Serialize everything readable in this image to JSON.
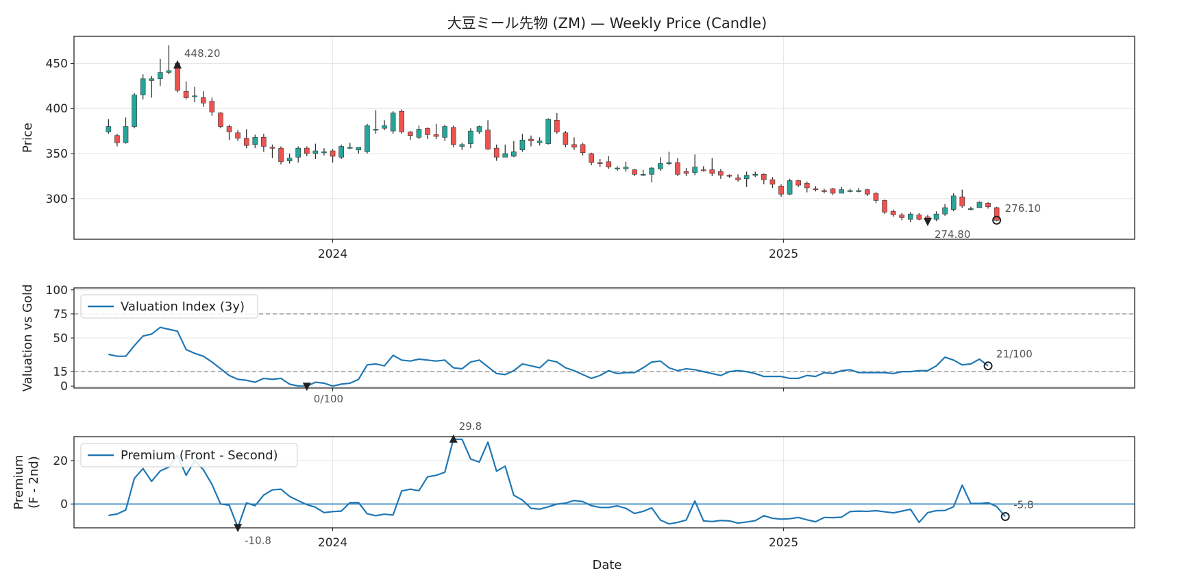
{
  "chart_data": [
    {
      "panel": "price",
      "type": "candlestick",
      "title": "大豆ミール先物 (ZM) — Weekly Price (Candle)",
      "ylabel": "Price",
      "ylim": [
        255,
        480
      ],
      "yticks": [
        300,
        350,
        400,
        450
      ],
      "xticks": [
        {
          "label": "2024",
          "date": "2024-01-01"
        },
        {
          "label": "2025",
          "date": "2025-01-01"
        }
      ],
      "xlim": [
        "2023-06-05",
        "2025-10-13"
      ],
      "grid": true,
      "start_date": "2023-07-03",
      "ohlc": [
        [
          374,
          380,
          388,
          372
        ],
        [
          370,
          362,
          372,
          358
        ],
        [
          362,
          380,
          390,
          361
        ],
        [
          380,
          415,
          417,
          378
        ],
        [
          415,
          433,
          438,
          410
        ],
        [
          431,
          433,
          436,
          412
        ],
        [
          433,
          440,
          455,
          425
        ],
        [
          440,
          442,
          470,
          438
        ],
        [
          450,
          420,
          453,
          418
        ],
        [
          419,
          412,
          430,
          410
        ],
        [
          414,
          414,
          424,
          407
        ],
        [
          412,
          406,
          419,
          402
        ],
        [
          408,
          396,
          412,
          392
        ],
        [
          395,
          380,
          396,
          378
        ],
        [
          380,
          374,
          382,
          365
        ],
        [
          373,
          367,
          376,
          364
        ],
        [
          367,
          359,
          377,
          356
        ],
        [
          360,
          368,
          371,
          356
        ],
        [
          368,
          358,
          372,
          352
        ],
        [
          357,
          356,
          360,
          345
        ],
        [
          356,
          341,
          358,
          338
        ],
        [
          342,
          345,
          350,
          339
        ],
        [
          346,
          356,
          358,
          340
        ],
        [
          356,
          350,
          358,
          347
        ],
        [
          350,
          353,
          361,
          344
        ],
        [
          352,
          352,
          356,
          348
        ],
        [
          353,
          347,
          355,
          340
        ],
        [
          346,
          358,
          360,
          344
        ],
        [
          357,
          357,
          362,
          355
        ],
        [
          354,
          357,
          357,
          350
        ],
        [
          352,
          381,
          383,
          350
        ],
        [
          377,
          377,
          398,
          372
        ],
        [
          378,
          381,
          387,
          376
        ],
        [
          375,
          395,
          397,
          372
        ],
        [
          397,
          374,
          399,
          372
        ],
        [
          374,
          370,
          375,
          365
        ],
        [
          368,
          377,
          381,
          366
        ],
        [
          378,
          371,
          379,
          366
        ],
        [
          371,
          369,
          383,
          366
        ],
        [
          368,
          380,
          382,
          364
        ],
        [
          379,
          360,
          381,
          357
        ],
        [
          358,
          360,
          362,
          354
        ],
        [
          361,
          375,
          378,
          356
        ],
        [
          374,
          380,
          381,
          372
        ],
        [
          376,
          355,
          387,
          354
        ],
        [
          356,
          346,
          360,
          342
        ],
        [
          346,
          350,
          360,
          347
        ],
        [
          347,
          352,
          364,
          346
        ],
        [
          354,
          365,
          372,
          352
        ],
        [
          366,
          364,
          370,
          358
        ],
        [
          362,
          364,
          368,
          359
        ],
        [
          361,
          388,
          389,
          360
        ],
        [
          387,
          374,
          395,
          372
        ],
        [
          373,
          360,
          375,
          357
        ],
        [
          360,
          357,
          368,
          354
        ],
        [
          360,
          351,
          362,
          348
        ],
        [
          350,
          340,
          351,
          337
        ],
        [
          340,
          339,
          344,
          335
        ],
        [
          341,
          335,
          347,
          333
        ],
        [
          334,
          334,
          336,
          331
        ],
        [
          333,
          335,
          341,
          330
        ],
        [
          332,
          327,
          333,
          325
        ],
        [
          327,
          327,
          332,
          325
        ],
        [
          327,
          334,
          335,
          318
        ],
        [
          333,
          339,
          346,
          331
        ],
        [
          340,
          340,
          352,
          337
        ],
        [
          340,
          327,
          345,
          325
        ],
        [
          330,
          328,
          334,
          325
        ],
        [
          329,
          335,
          349,
          326
        ],
        [
          332,
          331,
          336,
          330
        ],
        [
          332,
          328,
          345,
          325
        ],
        [
          330,
          326,
          333,
          322
        ],
        [
          326,
          325,
          327,
          323
        ],
        [
          323,
          321,
          327,
          319
        ],
        [
          322,
          326,
          330,
          313
        ],
        [
          326,
          327,
          330,
          324
        ],
        [
          327,
          321,
          328,
          316
        ],
        [
          321,
          316,
          324,
          312
        ],
        [
          314,
          305,
          316,
          302
        ],
        [
          305,
          320,
          322,
          304
        ],
        [
          320,
          315,
          321,
          313
        ],
        [
          317,
          312,
          319,
          307
        ],
        [
          311,
          310,
          314,
          308
        ],
        [
          309,
          308,
          311,
          306
        ],
        [
          311,
          306,
          312,
          304
        ],
        [
          306,
          310,
          313,
          306
        ],
        [
          309,
          309,
          311,
          307
        ],
        [
          309,
          309,
          312,
          307
        ],
        [
          310,
          305,
          311,
          303
        ],
        [
          306,
          298,
          307,
          295
        ],
        [
          298,
          285,
          299,
          283
        ],
        [
          286,
          282,
          288,
          280
        ],
        [
          282,
          279,
          284,
          276
        ],
        [
          277,
          283,
          285,
          274
        ],
        [
          282,
          277,
          284,
          276
        ],
        [
          280,
          275,
          282,
          273
        ],
        [
          277,
          283,
          286,
          275
        ],
        [
          283,
          290,
          294,
          281
        ],
        [
          288,
          303,
          306,
          286
        ],
        [
          302,
          292,
          310,
          290
        ],
        [
          289,
          289,
          291,
          287
        ],
        [
          290,
          296,
          297,
          290
        ],
        [
          295,
          291,
          296,
          289
        ],
        [
          290,
          276,
          291,
          275
        ]
      ],
      "colors": {
        "up": "#26a69a",
        "down": "#ef5350",
        "wick": "#333333"
      },
      "annotations": [
        {
          "label": "448.20",
          "index": 8,
          "value": 448.2,
          "marker": "triangle-up"
        },
        {
          "label": "274.80",
          "index": 95,
          "value": 274.8,
          "marker": "triangle-down"
        },
        {
          "label": "276.10",
          "index": 103,
          "value": 276.1,
          "marker": "circle"
        }
      ]
    },
    {
      "panel": "valuation",
      "type": "line",
      "ylabel": "Valuation vs Gold",
      "ylim": [
        -2,
        102
      ],
      "yticks": [
        0,
        15,
        50,
        75,
        100
      ],
      "reference_lines": [
        75,
        15
      ],
      "series": [
        {
          "name": "Valuation Index (3y)",
          "color": "#1f77b4",
          "values": [
            33,
            31,
            31,
            42,
            52,
            54,
            61,
            59,
            57,
            38,
            34,
            31,
            25,
            18,
            11,
            7,
            6,
            4,
            8,
            7,
            8,
            2,
            0,
            0,
            4,
            3,
            0,
            2,
            3,
            7,
            22,
            23,
            21,
            32,
            27,
            26,
            28,
            27,
            26,
            27,
            19,
            18,
            25,
            27,
            20,
            13,
            12,
            16,
            23,
            21,
            19,
            27,
            25,
            19,
            16,
            12,
            8,
            11,
            16,
            13,
            14,
            14,
            19,
            25,
            26,
            19,
            16,
            18,
            17,
            15,
            13,
            11,
            15,
            16,
            15,
            13,
            10,
            10,
            10,
            8,
            8,
            11,
            10,
            14,
            13,
            16,
            17,
            14,
            14,
            14,
            14,
            13,
            15,
            15,
            16,
            16,
            21,
            30,
            27,
            22,
            23,
            28,
            21
          ]
        }
      ],
      "annotations": [
        {
          "label": "0/100",
          "index": 23,
          "value": 0,
          "marker": "triangle-down"
        },
        {
          "label": "21/100",
          "index": 102,
          "value": 21,
          "marker": "circle"
        }
      ]
    },
    {
      "panel": "premium",
      "type": "line",
      "ylabel": "Premium\n(F - 2nd)",
      "xlabel": "Date",
      "ylim": [
        -11,
        31
      ],
      "yticks": [
        0,
        20
      ],
      "reference_lines": [
        0
      ],
      "series": [
        {
          "name": "Premium (Front - Second)",
          "color": "#1f77b4",
          "values": [
            -5.3,
            -4.6,
            -2.8,
            11.8,
            16.3,
            10.4,
            15.2,
            17.0,
            22.5,
            13.2,
            20.0,
            15.8,
            9.0,
            0.0,
            -0.6,
            -10.8,
            0.5,
            -0.8,
            4.1,
            6.5,
            6.8,
            3.5,
            1.5,
            -0.3,
            -1.5,
            -4.0,
            -3.5,
            -3.3,
            0.6,
            0.6,
            -4.5,
            -5.4,
            -4.7,
            -5.1,
            6.0,
            6.8,
            6.1,
            12.5,
            13.2,
            14.6,
            29.8,
            29.8,
            20.7,
            19.3,
            28.5,
            15.1,
            17.4,
            4.0,
            1.8,
            -2.0,
            -2.4,
            -1.3,
            -0.1,
            0.4,
            1.6,
            1.1,
            -0.8,
            -1.6,
            -1.6,
            -0.9,
            -2.0,
            -4.4,
            -3.4,
            -1.8,
            -7.4,
            -9.2,
            -8.5,
            -7.4,
            1.4,
            -7.8,
            -8.1,
            -7.6,
            -7.8,
            -8.8,
            -8.3,
            -7.7,
            -5.4,
            -6.6,
            -7.0,
            -6.8,
            -6.2,
            -7.3,
            -8.2,
            -6.2,
            -6.3,
            -6.1,
            -3.5,
            -3.3,
            -3.4,
            -3.1,
            -3.6,
            -4.1,
            -3.3,
            -2.4,
            -8.5,
            -4.0,
            -3.1,
            -3.0,
            -1.3,
            8.7,
            0.2,
            0.2,
            0.6,
            -1.2,
            -5.8
          ]
        }
      ],
      "annotations": [
        {
          "label": "29.8",
          "index": 40,
          "value": 29.8,
          "marker": "triangle-up"
        },
        {
          "label": "-10.8",
          "index": 15,
          "value": -10.8,
          "marker": "triangle-down"
        },
        {
          "label": "-5.8",
          "index": 104,
          "value": -5.8,
          "marker": "circle"
        }
      ]
    }
  ]
}
